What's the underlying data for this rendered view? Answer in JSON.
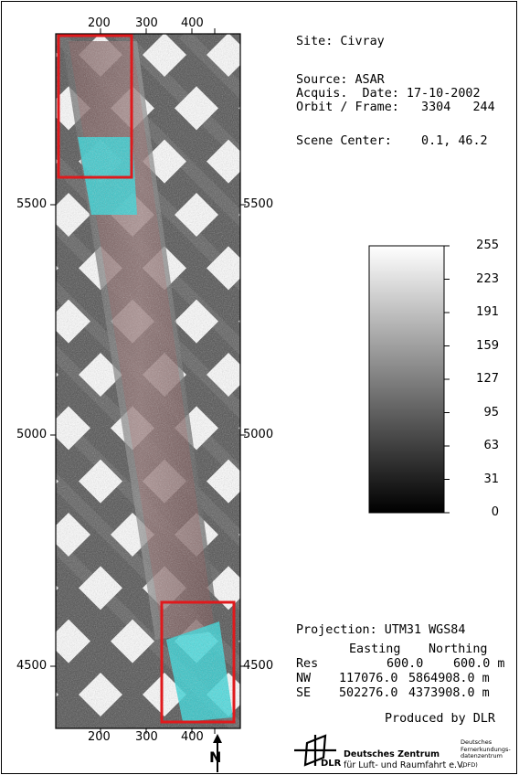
{
  "map": {
    "x_ticks": [
      "200",
      "300",
      "400"
    ],
    "y_ticks": [
      "5500",
      "5000",
      "4500"
    ],
    "north_arrow": "N"
  },
  "info": {
    "site": "Site: Civray",
    "source": "Source: ASAR",
    "acquis_date": "Acquis.  Date: 17-10-2002",
    "orbit_frame": "Orbit / Frame:   3304   244",
    "scene_center": "Scene Center:    0.1, 46.2"
  },
  "scale": {
    "labels": [
      "255",
      "223",
      "191",
      "159",
      "127",
      "95",
      "63",
      "31",
      "0"
    ]
  },
  "projection": {
    "title": "Projection: UTM31 WGS84",
    "col_easting": "Easting",
    "col_northing": "Northing",
    "rows": [
      {
        "label": "Res",
        "easting": "600.0",
        "northing": "600.0 m"
      },
      {
        "label": "NW",
        "easting": "117076.0",
        "northing": "5864908.0 m"
      },
      {
        "label": "SE",
        "easting": "502276.0",
        "northing": "4373908.0 m"
      }
    ],
    "produced_by": "Produced by DLR"
  },
  "logos": {
    "dlr_short": "DLR",
    "dlr_name_line1": "Deutsches Zentrum",
    "dlr_name_line2": "für Luft- und Raumfahrt e.V.",
    "dfd_line1": "Deutsches",
    "dfd_line2": "Fernerkundungs-",
    "dfd_line3": "datenzentrum",
    "dfd_line4": "(DFD)"
  },
  "colors": {
    "highlight_box": "#e0191c",
    "overlay_cyan": "#29d8dc",
    "overlay_red": "#b83b3b"
  }
}
